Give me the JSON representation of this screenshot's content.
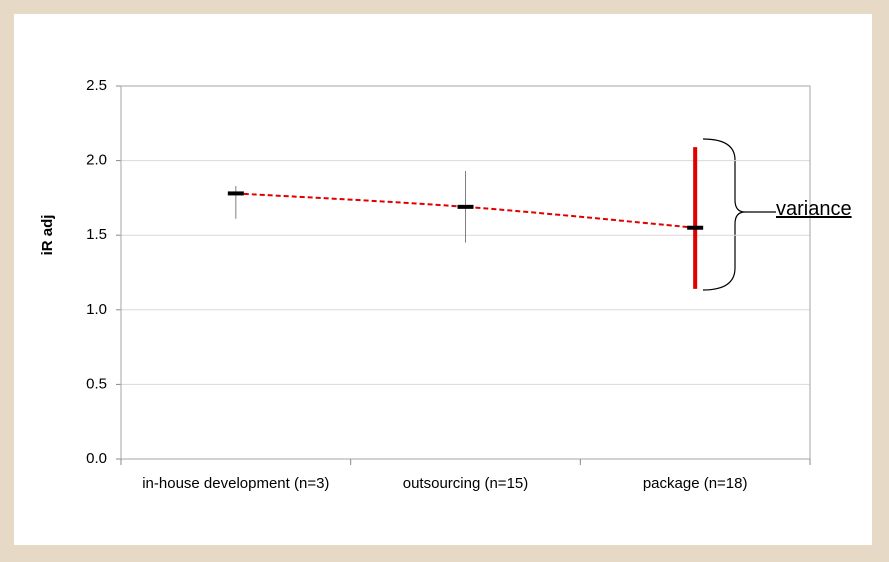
{
  "chart_data": {
    "type": "errorbar",
    "y_label": "iR adj",
    "categories": [
      "in-house development (n=3)",
      "outsourcing (n=15)",
      "package (n=18)"
    ],
    "series": [
      {
        "color": "#e00000",
        "values": [
          1.78,
          1.69,
          1.55
        ],
        "high": [
          1.83,
          1.93,
          2.09
        ],
        "low": [
          1.61,
          1.45,
          1.14
        ],
        "error_colors": [
          "#808080",
          "#808080",
          "#e00000"
        ]
      }
    ],
    "ylim": [
      0,
      2.5
    ],
    "yticks": [
      {
        "value": 0,
        "label": "0.0"
      },
      {
        "value": 0.5,
        "label": "0.5"
      },
      {
        "value": 1,
        "label": "1.0"
      },
      {
        "value": 1.5,
        "label": "1.5"
      },
      {
        "value": 2,
        "label": "2.0"
      },
      {
        "value": 2.5,
        "label": "2.5"
      }
    ],
    "grid": true,
    "annotation": "variance"
  }
}
